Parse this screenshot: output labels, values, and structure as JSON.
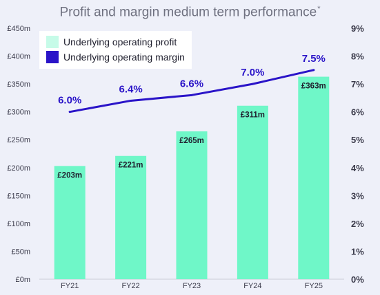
{
  "title": "Profit and margin medium term performance",
  "title_marker": "*",
  "colors": {
    "bar": "#6ff7c8",
    "line": "#2a14c8",
    "label": "#1f1f2e",
    "margin_label": "#2a14c8",
    "axis_text": "#3a3a4a",
    "background": "#eef0f9"
  },
  "legend": {
    "items": [
      {
        "label": "Underlying operating profit",
        "color": "#c6fbe8"
      },
      {
        "label": "Underlying operating margin",
        "color": "#2a14c8"
      }
    ]
  },
  "chart_data": {
    "type": "bar+line",
    "categories": [
      "FY21",
      "FY22",
      "FY23",
      "FY24",
      "FY25"
    ],
    "series": [
      {
        "name": "Underlying operating profit",
        "type": "bar",
        "axis": "left",
        "values": [
          203,
          221,
          265,
          311,
          363
        ],
        "labels": [
          "£203m",
          "£221m",
          "£265m",
          "£311m",
          "£363m"
        ]
      },
      {
        "name": "Underlying operating margin",
        "type": "line",
        "axis": "right",
        "values": [
          6.0,
          6.4,
          6.6,
          7.0,
          7.5
        ],
        "labels": [
          "6.0%",
          "6.4%",
          "6.6%",
          "7.0%",
          "7.5%"
        ]
      }
    ],
    "y_left": {
      "range": [
        0,
        450
      ],
      "ticks": [
        "£0m",
        "£50m",
        "£100m",
        "£150m",
        "£200m",
        "£250m",
        "£300m",
        "£350m",
        "£400m",
        "£450m"
      ]
    },
    "y_right": {
      "range": [
        0,
        9
      ],
      "ticks": [
        "0%",
        "1%",
        "2%",
        "3%",
        "4%",
        "5%",
        "6%",
        "7%",
        "8%",
        "9%"
      ]
    },
    "grid": false,
    "legend_position": "top-left"
  }
}
